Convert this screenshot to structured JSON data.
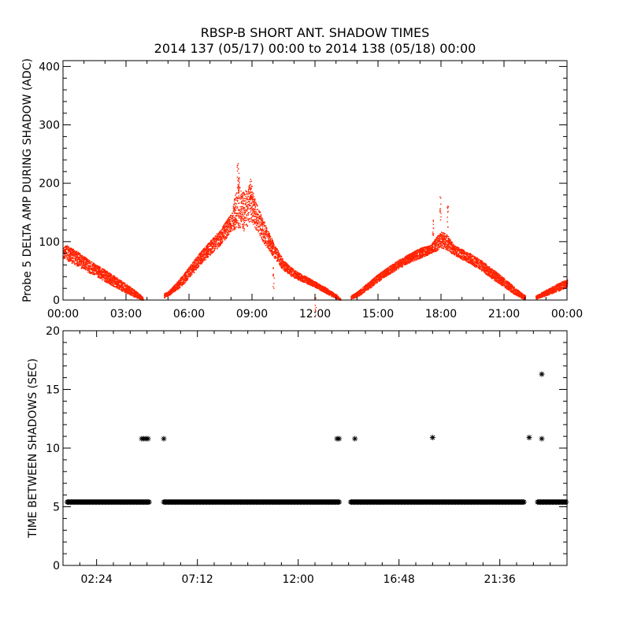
{
  "header": {
    "title": "RBSP-B SHORT ANT. SHADOW TIMES",
    "subtitle": "2014 137 (05/17) 00:00 to 2014 138 (05/18) 00:00"
  },
  "chart_data": [
    {
      "type": "scatter",
      "name": "delta-amp",
      "ylabel": "Probe 5 DELTA AMP DURING SHADOW (ADC)",
      "xlabel": "",
      "xlim": [
        0,
        24
      ],
      "ylim": [
        0,
        410
      ],
      "x_tick_values": [
        0,
        3,
        6,
        9,
        12,
        15,
        18,
        21,
        24
      ],
      "x_tick_labels": [
        "00:00",
        "03:00",
        "06:00",
        "09:00",
        "12:00",
        "15:00",
        "18:00",
        "21:00",
        "00:00"
      ],
      "y_tick_values": [
        0,
        100,
        200,
        300,
        400
      ],
      "y_tick_labels": [
        "0",
        "100",
        "200",
        "300",
        "400"
      ],
      "grid": false,
      "point_color": "#ff2200",
      "point_marker": "dot",
      "envelope": {
        "description_hours_to_adc": "upper/lower envelope of dense point band (hour, value)",
        "segments": [
          {
            "x": [
              0.0,
              0.5,
              1.0,
              1.5,
              2.0,
              2.5,
              3.0,
              3.5,
              3.8
            ],
            "hi": [
              97,
              88,
              75,
              63,
              52,
              40,
              28,
              15,
              5
            ],
            "lo": [
              72,
              62,
              52,
              42,
              32,
              22,
              12,
              4,
              0
            ]
          },
          {
            "x": [
              4.8,
              5.0,
              5.5,
              6.0,
              6.5,
              7.0,
              7.5,
              8.0,
              8.3,
              8.6,
              8.9,
              9.2,
              9.5,
              10.0,
              10.5,
              11.0,
              11.5,
              12.0,
              12.5,
              13.0,
              13.2
            ],
            "hi": [
              12,
              15,
              35,
              58,
              82,
              102,
              122,
              150,
              200,
              185,
              200,
              165,
              140,
              100,
              68,
              52,
              42,
              32,
              22,
              10,
              3
            ],
            "lo": [
              4,
              8,
              20,
              38,
              60,
              78,
              95,
              118,
              125,
              115,
              135,
              120,
              100,
              75,
              50,
              38,
              30,
              22,
              12,
              3,
              0
            ]
          },
          {
            "x": [
              13.7,
              14.0,
              14.5,
              15.0,
              15.5,
              16.0,
              16.5,
              17.0,
              17.5,
              17.8,
              18.0,
              18.3,
              18.6,
              19.0,
              19.5,
              20.0,
              20.5,
              21.0,
              21.5,
              22.0
            ],
            "hi": [
              8,
              15,
              30,
              45,
              58,
              70,
              80,
              90,
              95,
              110,
              118,
              112,
              95,
              88,
              78,
              66,
              52,
              38,
              22,
              8
            ],
            "lo": [
              2,
              6,
              18,
              32,
              44,
              55,
              65,
              72,
              80,
              85,
              90,
              85,
              78,
              70,
              60,
              48,
              35,
              22,
              10,
              0
            ]
          },
          {
            "x": [
              22.5,
              23.0,
              23.5,
              24.0
            ],
            "hi": [
              8,
              18,
              28,
              36
            ],
            "lo": [
              2,
              8,
              15,
              22
            ]
          }
        ]
      },
      "spikes": [
        {
          "x": 8.3,
          "y": 245
        },
        {
          "x": 8.35,
          "y": 225
        },
        {
          "x": 8.9,
          "y": 215
        },
        {
          "x": 8.95,
          "y": 205
        },
        {
          "x": 17.95,
          "y": 178
        },
        {
          "x": 18.3,
          "y": 165
        },
        {
          "x": 17.6,
          "y": 145
        },
        {
          "x": 10.0,
          "y": 60
        },
        {
          "x": 12.0,
          "y": 10
        }
      ]
    },
    {
      "type": "scatter",
      "name": "time-between",
      "ylabel": "TIME BETWEEN SHADOWS (SEC)",
      "xlabel": "",
      "xlim": [
        0,
        24
      ],
      "ylim": [
        0,
        20
      ],
      "x_tick_values": [
        1.6,
        6.4,
        11.2,
        16.0,
        20.8
      ],
      "x_tick_labels": [
        "02:24",
        "07:12",
        "12:00",
        "16:48",
        "21:36"
      ],
      "y_tick_values": [
        0,
        5,
        10,
        15,
        20
      ],
      "y_tick_labels": [
        "0",
        "5",
        "10",
        "15",
        "20"
      ],
      "grid": false,
      "point_color": "#000000",
      "point_marker": "asterisk",
      "baseline": {
        "y": 5.4,
        "ranges": [
          [
            0.2,
            4.1
          ],
          [
            4.8,
            13.2
          ],
          [
            13.7,
            22.0
          ],
          [
            22.6,
            24.0
          ]
        ]
      },
      "points": [
        {
          "x": 3.75,
          "y": 10.8
        },
        {
          "x": 3.85,
          "y": 10.8
        },
        {
          "x": 3.95,
          "y": 10.8
        },
        {
          "x": 4.05,
          "y": 10.8
        },
        {
          "x": 4.8,
          "y": 10.8
        },
        {
          "x": 13.05,
          "y": 10.8
        },
        {
          "x": 13.15,
          "y": 10.8
        },
        {
          "x": 13.9,
          "y": 10.8
        },
        {
          "x": 17.6,
          "y": 10.9
        },
        {
          "x": 22.2,
          "y": 10.9
        },
        {
          "x": 22.8,
          "y": 10.8
        },
        {
          "x": 22.8,
          "y": 16.3
        }
      ]
    }
  ]
}
